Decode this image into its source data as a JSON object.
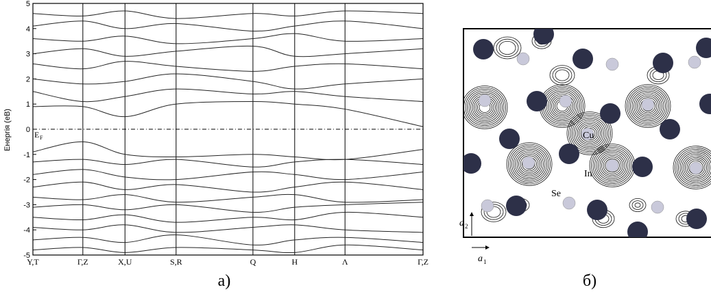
{
  "chart_data": {
    "type": "line",
    "y_label": "Енергія (еВ)",
    "caption": "а)",
    "fermi_level": 0,
    "fermi_label": "E",
    "fermi_sub": "F",
    "color": "#222222",
    "xlim": [
      0,
      1
    ],
    "ylim": [
      -5,
      5
    ],
    "yticks": [
      -5,
      -4,
      -3,
      -2,
      -1,
      0,
      1,
      2,
      3,
      4,
      5
    ],
    "xticks": [
      {
        "value": 0,
        "label": "Y,T"
      },
      {
        "value": 0.128,
        "label": "Γ,Z"
      },
      {
        "value": 0.236,
        "label": "X,U"
      },
      {
        "value": 0.367,
        "label": "S,R"
      },
      {
        "value": 0.564,
        "label": "Q"
      },
      {
        "value": 0.671,
        "label": "H"
      },
      {
        "value": 0.8,
        "label": "Λ"
      },
      {
        "value": 1,
        "label": "Γ,Z"
      }
    ],
    "x": [
      0,
      0.128,
      0.236,
      0.367,
      0.564,
      0.671,
      0.8,
      1
    ],
    "series": [
      {
        "values": [
          0.9,
          0.9,
          0.5,
          1.0,
          1.1,
          1.0,
          0.8,
          0.1
        ]
      },
      {
        "values": [
          1.5,
          1.1,
          1.3,
          1.6,
          1.4,
          1.5,
          1.3,
          1.1
        ]
      },
      {
        "values": [
          2.0,
          1.8,
          1.9,
          2.2,
          1.9,
          1.6,
          1.8,
          2.0
        ]
      },
      {
        "values": [
          2.6,
          2.4,
          2.7,
          2.5,
          2.3,
          2.5,
          2.6,
          2.4
        ]
      },
      {
        "values": [
          3.0,
          3.2,
          2.9,
          3.1,
          3.3,
          2.9,
          3.0,
          3.2
        ]
      },
      {
        "values": [
          3.6,
          3.5,
          3.7,
          3.4,
          3.6,
          3.8,
          3.5,
          3.6
        ]
      },
      {
        "values": [
          4.1,
          4.3,
          4.0,
          4.2,
          3.9,
          4.1,
          4.3,
          4.0
        ]
      },
      {
        "values": [
          4.6,
          4.5,
          4.7,
          4.4,
          4.6,
          4.5,
          4.7,
          4.6
        ]
      },
      {
        "values": [
          -0.9,
          -0.5,
          -1.0,
          -1.1,
          -1.0,
          -1.1,
          -1.2,
          -0.8
        ]
      },
      {
        "values": [
          -1.3,
          -1.2,
          -1.4,
          -1.2,
          -1.5,
          -1.3,
          -1.2,
          -1.4
        ]
      },
      {
        "values": [
          -1.8,
          -1.6,
          -1.9,
          -2.0,
          -1.7,
          -1.8,
          -2.0,
          -1.7
        ]
      },
      {
        "values": [
          -2.3,
          -2.1,
          -2.4,
          -2.2,
          -2.5,
          -2.3,
          -2.1,
          -2.4
        ]
      },
      {
        "values": [
          -2.7,
          -2.8,
          -2.6,
          -2.9,
          -2.7,
          -2.6,
          -2.9,
          -2.8
        ]
      },
      {
        "values": [
          -3.1,
          -3.0,
          -3.2,
          -3.0,
          -3.3,
          -3.1,
          -3.0,
          -2.9
        ]
      },
      {
        "values": [
          -3.5,
          -3.6,
          -3.4,
          -3.7,
          -3.5,
          -3.6,
          -3.3,
          -3.5
        ]
      },
      {
        "values": [
          -3.9,
          -4.0,
          -3.8,
          -4.1,
          -3.9,
          -3.8,
          -4.0,
          -4.1
        ]
      },
      {
        "values": [
          -4.4,
          -4.3,
          -4.5,
          -4.2,
          -4.6,
          -4.4,
          -4.3,
          -4.5
        ]
      },
      {
        "values": [
          -4.8,
          -4.7,
          -4.9,
          -4.7,
          -4.8,
          -4.9,
          -4.6,
          -4.8
        ]
      }
    ]
  },
  "panel_b": {
    "labels": [
      "Cu",
      "In",
      "Se"
    ],
    "axis_1": "a",
    "axis_1_sub": "1",
    "axis_2": "a",
    "axis_2_sub": "2",
    "caption": "б)"
  }
}
